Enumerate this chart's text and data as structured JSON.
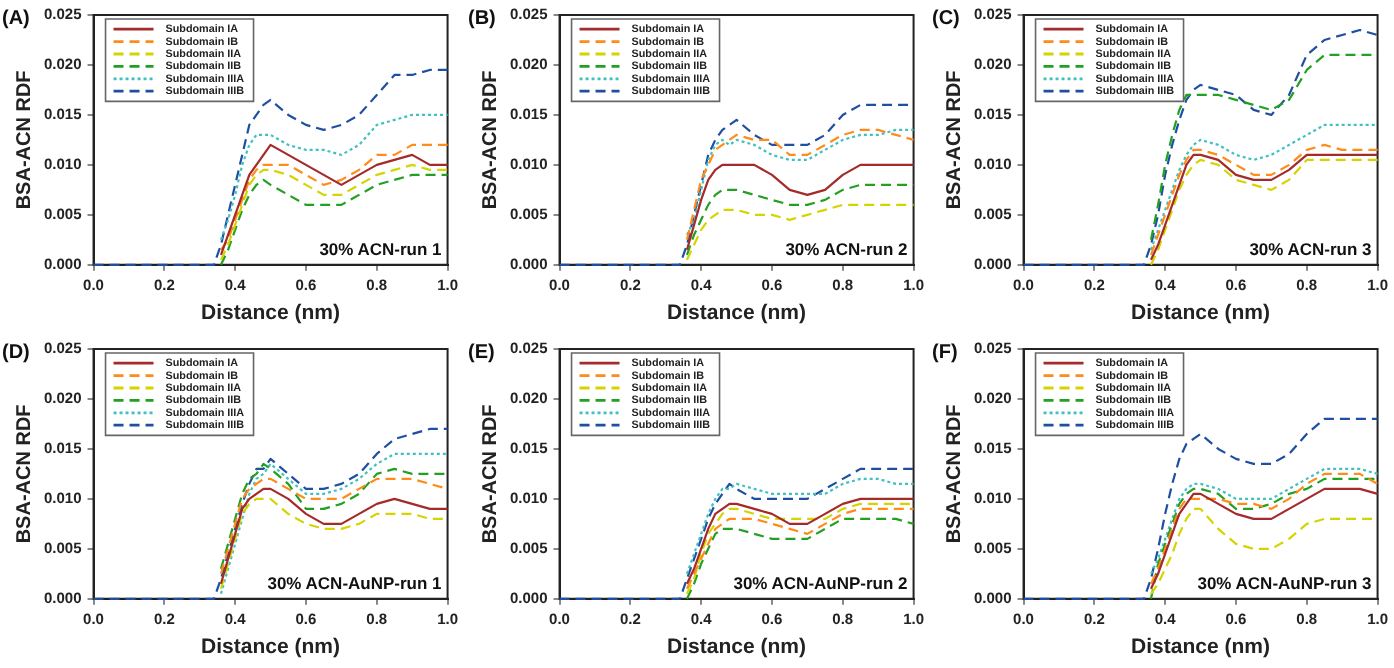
{
  "chart_data": [
    {
      "type": "line",
      "title": "(A)",
      "xlabel": "Distance (nm)",
      "ylabel": "BSA-ACN RDF",
      "annotations": [
        "30% ACN-run 1"
      ],
      "legend": "top left",
      "marker": "none",
      "grid": false,
      "x": [
        0,
        0.34,
        0.36,
        0.38,
        0.4,
        0.42,
        0.44,
        0.46,
        0.48,
        0.5,
        0.55,
        0.6,
        0.65,
        0.7,
        0.75,
        0.8,
        0.85,
        0.9,
        0.95,
        1.0
      ],
      "xlim": [
        0,
        1
      ],
      "xticks": [
        {
          "value": 0,
          "label": "0.0"
        },
        {
          "value": 0.2,
          "label": "0.2"
        },
        {
          "value": 0.4,
          "label": "0.4"
        },
        {
          "value": 0.6,
          "label": "0.6"
        },
        {
          "value": 0.8,
          "label": "0.8"
        },
        {
          "value": 1,
          "label": "1.0"
        }
      ],
      "ylim": [
        0,
        0.025
      ],
      "yticks": [
        {
          "value": 0,
          "label": "0.000"
        },
        {
          "value": 0.005,
          "label": "0.005"
        },
        {
          "value": 0.01,
          "label": "0.010"
        },
        {
          "value": 0.015,
          "label": "0.015"
        },
        {
          "value": 0.02,
          "label": "0.020"
        },
        {
          "value": 0.025,
          "label": "0.025"
        }
      ],
      "series": [
        {
          "name": "Subdomain IA",
          "color": "#a52a2a",
          "line_style": "solid",
          "values": [
            null,
            null,
            0.001,
            0.003,
            0.005,
            0.007,
            0.009,
            0.01,
            0.011,
            0.012,
            0.011,
            0.01,
            0.009,
            0.008,
            0.009,
            0.01,
            0.0105,
            0.011,
            0.01,
            0.01
          ]
        },
        {
          "name": "Subdomain IB",
          "color": "#ff8c1a",
          "line_style": "dashed",
          "values": [
            null,
            null,
            0.0015,
            0.0025,
            0.0045,
            0.0065,
            0.0085,
            0.0095,
            0.01,
            0.01,
            0.01,
            0.009,
            0.008,
            0.0085,
            0.0095,
            0.011,
            0.011,
            0.012,
            0.012,
            0.012
          ]
        },
        {
          "name": "Subdomain IIA",
          "color": "#d4d400",
          "line_style": "dashed",
          "values": [
            null,
            null,
            0.0005,
            0.002,
            0.004,
            0.006,
            0.008,
            0.009,
            0.0095,
            0.0095,
            0.009,
            0.008,
            0.007,
            0.007,
            0.008,
            0.009,
            0.0095,
            0.01,
            0.0095,
            0.0095
          ]
        },
        {
          "name": "Subdomain IIB",
          "color": "#22a022",
          "line_style": "dashed",
          "values": [
            null,
            null,
            0,
            0.0015,
            0.0035,
            0.0055,
            0.007,
            0.008,
            0.0085,
            0.008,
            0.007,
            0.006,
            0.006,
            0.006,
            0.007,
            0.008,
            0.0085,
            0.009,
            0.009,
            0.009
          ]
        },
        {
          "name": "Subdomain IIIA",
          "color": "#40c0c0",
          "line_style": "dotted",
          "values": [
            null,
            null,
            0.0025,
            0.0045,
            0.007,
            0.01,
            0.012,
            0.013,
            0.013,
            0.013,
            0.012,
            0.0115,
            0.0115,
            0.011,
            0.012,
            0.014,
            0.0145,
            0.015,
            0.015,
            0.015
          ]
        },
        {
          "name": "Subdomain IIIB",
          "color": "#1f4fa0",
          "line_style": "dashed",
          "values": [
            0,
            0,
            0.002,
            0.005,
            0.008,
            0.011,
            0.014,
            0.015,
            0.016,
            0.0165,
            0.015,
            0.014,
            0.0135,
            0.014,
            0.015,
            0.017,
            0.019,
            0.019,
            0.0195,
            0.0195
          ]
        }
      ]
    },
    {
      "type": "line",
      "title": "(B)",
      "xlabel": "Distance (nm)",
      "ylabel": "BSA-ACN RDF",
      "annotations": [
        "30% ACN-run 2"
      ],
      "legend": "top left",
      "marker": "none",
      "grid": false,
      "x": [
        0,
        0.34,
        0.36,
        0.38,
        0.4,
        0.42,
        0.44,
        0.46,
        0.48,
        0.5,
        0.55,
        0.6,
        0.65,
        0.7,
        0.75,
        0.8,
        0.85,
        0.9,
        0.95,
        1.0
      ],
      "xlim": [
        0,
        1
      ],
      "xticks": [
        {
          "value": 0,
          "label": "0.0"
        },
        {
          "value": 0.2,
          "label": "0.2"
        },
        {
          "value": 0.4,
          "label": "0.4"
        },
        {
          "value": 0.6,
          "label": "0.6"
        },
        {
          "value": 0.8,
          "label": "0.8"
        },
        {
          "value": 1,
          "label": "1.0"
        }
      ],
      "ylim": [
        0,
        0.025
      ],
      "yticks": [
        {
          "value": 0,
          "label": "0.000"
        },
        {
          "value": 0.005,
          "label": "0.005"
        },
        {
          "value": 0.01,
          "label": "0.010"
        },
        {
          "value": 0.015,
          "label": "0.015"
        },
        {
          "value": 0.02,
          "label": "0.020"
        },
        {
          "value": 0.025,
          "label": "0.025"
        }
      ],
      "series": [
        {
          "name": "Subdomain IA",
          "color": "#a52a2a",
          "line_style": "solid",
          "values": [
            null,
            null,
            0.0015,
            0.004,
            0.0065,
            0.0085,
            0.0095,
            0.01,
            0.01,
            0.01,
            0.01,
            0.009,
            0.0075,
            0.007,
            0.0075,
            0.009,
            0.01,
            0.01,
            0.01,
            0.01
          ]
        },
        {
          "name": "Subdomain IB",
          "color": "#ff8c1a",
          "line_style": "dashed",
          "values": [
            null,
            null,
            0.0025,
            0.0055,
            0.0085,
            0.01,
            0.0115,
            0.012,
            0.0125,
            0.013,
            0.0125,
            0.0125,
            0.011,
            0.011,
            0.012,
            0.013,
            0.0135,
            0.0135,
            0.013,
            0.0125
          ]
        },
        {
          "name": "Subdomain IIA",
          "color": "#d4d400",
          "line_style": "dashed",
          "values": [
            null,
            null,
            0.0005,
            0.002,
            0.0035,
            0.0045,
            0.005,
            0.0055,
            0.0055,
            0.0055,
            0.005,
            0.005,
            0.0045,
            0.005,
            0.0055,
            0.006,
            0.006,
            0.006,
            0.006,
            0.006
          ]
        },
        {
          "name": "Subdomain IIB",
          "color": "#22a022",
          "line_style": "dashed",
          "values": [
            null,
            null,
            0.001,
            0.003,
            0.0045,
            0.006,
            0.007,
            0.0075,
            0.0075,
            0.0075,
            0.007,
            0.0065,
            0.006,
            0.006,
            0.0065,
            0.0075,
            0.008,
            0.008,
            0.008,
            0.008
          ]
        },
        {
          "name": "Subdomain IIIA",
          "color": "#40c0c0",
          "line_style": "dotted",
          "values": [
            null,
            null,
            0.003,
            0.0045,
            0.0075,
            0.0105,
            0.012,
            0.0125,
            0.012,
            0.0125,
            0.012,
            0.011,
            0.0105,
            0.0105,
            0.0115,
            0.0125,
            0.013,
            0.013,
            0.0135,
            0.0135
          ]
        },
        {
          "name": "Subdomain IIIB",
          "color": "#1f4fa0",
          "line_style": "dashed",
          "values": [
            0,
            0,
            0.002,
            0.005,
            0.008,
            0.011,
            0.0125,
            0.0135,
            0.014,
            0.0145,
            0.013,
            0.012,
            0.012,
            0.012,
            0.013,
            0.015,
            0.016,
            0.016,
            0.016,
            0.016
          ]
        }
      ]
    },
    {
      "type": "line",
      "title": "(C)",
      "xlabel": "Distance (nm)",
      "ylabel": "BSA-ACN RDF",
      "annotations": [
        "30% ACN-run 3"
      ],
      "legend": "top left",
      "marker": "none",
      "grid": false,
      "x": [
        0,
        0.34,
        0.36,
        0.38,
        0.4,
        0.42,
        0.44,
        0.46,
        0.48,
        0.5,
        0.55,
        0.6,
        0.65,
        0.7,
        0.75,
        0.8,
        0.85,
        0.9,
        0.95,
        1.0
      ],
      "xlim": [
        0,
        1
      ],
      "xticks": [
        {
          "value": 0,
          "label": "0.0"
        },
        {
          "value": 0.2,
          "label": "0.2"
        },
        {
          "value": 0.4,
          "label": "0.4"
        },
        {
          "value": 0.6,
          "label": "0.6"
        },
        {
          "value": 0.8,
          "label": "0.8"
        },
        {
          "value": 1,
          "label": "1.0"
        }
      ],
      "ylim": [
        0,
        0.025
      ],
      "yticks": [
        {
          "value": 0,
          "label": "0.000"
        },
        {
          "value": 0.005,
          "label": "0.005"
        },
        {
          "value": 0.01,
          "label": "0.010"
        },
        {
          "value": 0.015,
          "label": "0.015"
        },
        {
          "value": 0.02,
          "label": "0.020"
        },
        {
          "value": 0.025,
          "label": "0.025"
        }
      ],
      "series": [
        {
          "name": "Subdomain IA",
          "color": "#a52a2a",
          "line_style": "solid",
          "values": [
            null,
            null,
            0.0005,
            0.002,
            0.004,
            0.006,
            0.008,
            0.01,
            0.011,
            0.011,
            0.0105,
            0.009,
            0.0085,
            0.0085,
            0.0095,
            0.011,
            0.011,
            0.011,
            0.011,
            0.011
          ]
        },
        {
          "name": "Subdomain IB",
          "color": "#ff8c1a",
          "line_style": "dashed",
          "values": [
            null,
            null,
            0.001,
            0.003,
            0.005,
            0.007,
            0.009,
            0.0105,
            0.0115,
            0.0115,
            0.011,
            0.01,
            0.009,
            0.009,
            0.01,
            0.0115,
            0.012,
            0.0115,
            0.0115,
            0.0115
          ]
        },
        {
          "name": "Subdomain IIA",
          "color": "#d4d400",
          "line_style": "dashed",
          "values": [
            null,
            null,
            0,
            0.0015,
            0.0035,
            0.0055,
            0.0075,
            0.009,
            0.01,
            0.0105,
            0.01,
            0.0085,
            0.008,
            0.0075,
            0.0085,
            0.0105,
            0.0105,
            0.0105,
            0.0105,
            0.0105
          ]
        },
        {
          "name": "Subdomain IIB",
          "color": "#22a022",
          "line_style": "dashed",
          "values": [
            null,
            null,
            0.0025,
            0.006,
            0.01,
            0.013,
            0.0155,
            0.017,
            0.017,
            0.017,
            0.017,
            0.0165,
            0.016,
            0.0155,
            0.0165,
            0.0195,
            0.021,
            0.021,
            0.021,
            0.021
          ]
        },
        {
          "name": "Subdomain IIIA",
          "color": "#40c0c0",
          "line_style": "dotted",
          "values": [
            null,
            null,
            0.0015,
            0.0035,
            0.0055,
            0.0075,
            0.0095,
            0.011,
            0.012,
            0.0125,
            0.012,
            0.011,
            0.0105,
            0.011,
            0.012,
            0.013,
            0.014,
            0.014,
            0.014,
            0.014
          ]
        },
        {
          "name": "Subdomain IIIB",
          "color": "#1f4fa0",
          "line_style": "dashed",
          "values": [
            0,
            0,
            0.002,
            0.005,
            0.009,
            0.012,
            0.0145,
            0.0165,
            0.0175,
            0.018,
            0.0175,
            0.017,
            0.0155,
            0.015,
            0.017,
            0.021,
            0.0225,
            0.023,
            0.0235,
            0.023
          ]
        }
      ]
    },
    {
      "type": "line",
      "title": "(D)",
      "xlabel": "Distance (nm)",
      "ylabel": "BSA-ACN RDF",
      "annotations": [
        "30% ACN-AuNP-run 1"
      ],
      "legend": "top left",
      "marker": "none",
      "grid": false,
      "x": [
        0,
        0.34,
        0.36,
        0.38,
        0.4,
        0.42,
        0.44,
        0.46,
        0.48,
        0.5,
        0.55,
        0.6,
        0.65,
        0.7,
        0.75,
        0.8,
        0.85,
        0.9,
        0.95,
        1.0
      ],
      "xlim": [
        0,
        1
      ],
      "xticks": [
        {
          "value": 0,
          "label": "0.0"
        },
        {
          "value": 0.2,
          "label": "0.2"
        },
        {
          "value": 0.4,
          "label": "0.4"
        },
        {
          "value": 0.6,
          "label": "0.6"
        },
        {
          "value": 0.8,
          "label": "0.8"
        },
        {
          "value": 1,
          "label": "1.0"
        }
      ],
      "ylim": [
        0,
        0.025
      ],
      "yticks": [
        {
          "value": 0,
          "label": "0.000"
        },
        {
          "value": 0.005,
          "label": "0.005"
        },
        {
          "value": 0.01,
          "label": "0.010"
        },
        {
          "value": 0.015,
          "label": "0.015"
        },
        {
          "value": 0.02,
          "label": "0.020"
        },
        {
          "value": 0.025,
          "label": "0.025"
        }
      ],
      "series": [
        {
          "name": "Subdomain IA",
          "color": "#a52a2a",
          "line_style": "solid",
          "values": [
            null,
            null,
            0.0015,
            0.004,
            0.0065,
            0.009,
            0.01,
            0.0105,
            0.011,
            0.011,
            0.01,
            0.0085,
            0.0075,
            0.0075,
            0.0085,
            0.0095,
            0.01,
            0.0095,
            0.009,
            0.009
          ]
        },
        {
          "name": "Subdomain IB",
          "color": "#ff8c1a",
          "line_style": "dashed",
          "values": [
            null,
            null,
            0.0025,
            0.005,
            0.0075,
            0.01,
            0.011,
            0.0115,
            0.012,
            0.012,
            0.011,
            0.01,
            0.01,
            0.01,
            0.011,
            0.012,
            0.012,
            0.012,
            0.0115,
            0.011
          ]
        },
        {
          "name": "Subdomain IIA",
          "color": "#d4d400",
          "line_style": "dashed",
          "values": [
            null,
            null,
            0.001,
            0.0035,
            0.006,
            0.0085,
            0.0095,
            0.01,
            0.01,
            0.01,
            0.0085,
            0.0075,
            0.007,
            0.007,
            0.0075,
            0.0085,
            0.0085,
            0.0085,
            0.008,
            0.008
          ]
        },
        {
          "name": "Subdomain IIB",
          "color": "#22a022",
          "line_style": "dashed",
          "values": [
            null,
            null,
            0.003,
            0.0055,
            0.008,
            0.0105,
            0.012,
            0.0125,
            0.0135,
            0.013,
            0.0115,
            0.009,
            0.009,
            0.0095,
            0.0105,
            0.0125,
            0.013,
            0.0125,
            0.0125,
            0.0125
          ]
        },
        {
          "name": "Subdomain IIIA",
          "color": "#40c0c0",
          "line_style": "dotted",
          "values": [
            null,
            null,
            0.0005,
            0.003,
            0.0055,
            0.008,
            0.0105,
            0.012,
            0.0125,
            0.0135,
            0.012,
            0.0105,
            0.0105,
            0.011,
            0.012,
            0.0135,
            0.0145,
            0.0145,
            0.0145,
            0.0145
          ]
        },
        {
          "name": "Subdomain IIIB",
          "color": "#1f4fa0",
          "line_style": "dashed",
          "values": [
            0,
            0,
            0.002,
            0.0045,
            0.007,
            0.0095,
            0.0115,
            0.013,
            0.013,
            0.014,
            0.0125,
            0.011,
            0.011,
            0.0115,
            0.0125,
            0.0145,
            0.016,
            0.0165,
            0.017,
            0.017
          ]
        }
      ]
    },
    {
      "type": "line",
      "title": "(E)",
      "xlabel": "Distance (nm)",
      "ylabel": "BSA-ACN RDF",
      "annotations": [
        "30% ACN-AuNP-run 2"
      ],
      "legend": "top left",
      "marker": "none",
      "grid": false,
      "x": [
        0,
        0.34,
        0.36,
        0.38,
        0.4,
        0.42,
        0.44,
        0.46,
        0.48,
        0.5,
        0.55,
        0.6,
        0.65,
        0.7,
        0.75,
        0.8,
        0.85,
        0.9,
        0.95,
        1.0
      ],
      "xlim": [
        0,
        1
      ],
      "xticks": [
        {
          "value": 0,
          "label": "0.0"
        },
        {
          "value": 0.2,
          "label": "0.2"
        },
        {
          "value": 0.4,
          "label": "0.4"
        },
        {
          "value": 0.6,
          "label": "0.6"
        },
        {
          "value": 0.8,
          "label": "0.8"
        },
        {
          "value": 1,
          "label": "1.0"
        }
      ],
      "ylim": [
        0,
        0.025
      ],
      "yticks": [
        {
          "value": 0,
          "label": "0.000"
        },
        {
          "value": 0.005,
          "label": "0.005"
        },
        {
          "value": 0.01,
          "label": "0.010"
        },
        {
          "value": 0.015,
          "label": "0.015"
        },
        {
          "value": 0.02,
          "label": "0.020"
        },
        {
          "value": 0.025,
          "label": "0.025"
        }
      ],
      "series": [
        {
          "name": "Subdomain IA",
          "color": "#a52a2a",
          "line_style": "solid",
          "values": [
            null,
            null,
            0.0015,
            0.003,
            0.005,
            0.007,
            0.0085,
            0.009,
            0.0095,
            0.0095,
            0.009,
            0.0085,
            0.0075,
            0.0075,
            0.0085,
            0.0095,
            0.01,
            0.01,
            0.01,
            0.01
          ]
        },
        {
          "name": "Subdomain IB",
          "color": "#ff8c1a",
          "line_style": "dashed",
          "values": [
            null,
            null,
            0.001,
            0.0025,
            0.004,
            0.0055,
            0.007,
            0.0075,
            0.008,
            0.008,
            0.008,
            0.0075,
            0.007,
            0.0065,
            0.0075,
            0.0085,
            0.009,
            0.009,
            0.009,
            0.009
          ]
        },
        {
          "name": "Subdomain IIA",
          "color": "#d4d400",
          "line_style": "dashed",
          "values": [
            null,
            null,
            0.0005,
            0.002,
            0.0045,
            0.0065,
            0.0075,
            0.0085,
            0.009,
            0.009,
            0.0085,
            0.008,
            0.008,
            0.008,
            0.008,
            0.009,
            0.0095,
            0.0095,
            0.0095,
            0.0095
          ]
        },
        {
          "name": "Subdomain IIB",
          "color": "#22a022",
          "line_style": "dashed",
          "values": [
            null,
            null,
            0,
            0.0015,
            0.0035,
            0.005,
            0.0065,
            0.007,
            0.007,
            0.007,
            0.0065,
            0.006,
            0.006,
            0.006,
            0.007,
            0.008,
            0.008,
            0.008,
            0.008,
            0.0075
          ]
        },
        {
          "name": "Subdomain IIIA",
          "color": "#40c0c0",
          "line_style": "dotted",
          "values": [
            null,
            null,
            0.0025,
            0.0045,
            0.0065,
            0.0085,
            0.01,
            0.011,
            0.011,
            0.0115,
            0.011,
            0.0105,
            0.0105,
            0.0105,
            0.0105,
            0.0115,
            0.012,
            0.012,
            0.0115,
            0.0115
          ]
        },
        {
          "name": "Subdomain IIIB",
          "color": "#1f4fa0",
          "line_style": "dashed",
          "values": [
            0,
            0,
            0.002,
            0.004,
            0.006,
            0.008,
            0.0095,
            0.0105,
            0.0115,
            0.011,
            0.01,
            0.01,
            0.01,
            0.01,
            0.011,
            0.012,
            0.013,
            0.013,
            0.013,
            0.013
          ]
        }
      ]
    },
    {
      "type": "line",
      "title": "(F)",
      "xlabel": "Distance (nm)",
      "ylabel": "BSA-ACN RDF",
      "annotations": [
        "30% ACN-AuNP-run 3"
      ],
      "legend": "top left",
      "marker": "none",
      "grid": false,
      "x": [
        0,
        0.34,
        0.36,
        0.38,
        0.4,
        0.42,
        0.44,
        0.46,
        0.48,
        0.5,
        0.55,
        0.6,
        0.65,
        0.7,
        0.75,
        0.8,
        0.85,
        0.9,
        0.95,
        1.0
      ],
      "xlim": [
        0,
        1
      ],
      "xticks": [
        {
          "value": 0,
          "label": "0.0"
        },
        {
          "value": 0.2,
          "label": "0.2"
        },
        {
          "value": 0.4,
          "label": "0.4"
        },
        {
          "value": 0.6,
          "label": "0.6"
        },
        {
          "value": 0.8,
          "label": "0.8"
        },
        {
          "value": 1,
          "label": "1.0"
        }
      ],
      "ylim": [
        0,
        0.025
      ],
      "yticks": [
        {
          "value": 0,
          "label": "0.000"
        },
        {
          "value": 0.005,
          "label": "0.005"
        },
        {
          "value": 0.01,
          "label": "0.010"
        },
        {
          "value": 0.015,
          "label": "0.015"
        },
        {
          "value": 0.02,
          "label": "0.020"
        },
        {
          "value": 0.025,
          "label": "0.025"
        }
      ],
      "series": [
        {
          "name": "Subdomain IA",
          "color": "#a52a2a",
          "line_style": "solid",
          "values": [
            null,
            null,
            0.001,
            0.0025,
            0.0045,
            0.0065,
            0.0085,
            0.0095,
            0.0105,
            0.0105,
            0.0095,
            0.0085,
            0.008,
            0.008,
            0.009,
            0.01,
            0.011,
            0.011,
            0.011,
            0.0105
          ]
        },
        {
          "name": "Subdomain IB",
          "color": "#ff8c1a",
          "line_style": "dashed",
          "values": [
            null,
            null,
            0.0015,
            0.003,
            0.005,
            0.007,
            0.009,
            0.01,
            0.01,
            0.01,
            0.01,
            0.0095,
            0.0095,
            0.009,
            0.01,
            0.0115,
            0.0125,
            0.0125,
            0.0125,
            0.0115
          ]
        },
        {
          "name": "Subdomain IIA",
          "color": "#d4d400",
          "line_style": "dashed",
          "values": [
            null,
            null,
            0.0005,
            0.0015,
            0.003,
            0.0045,
            0.0065,
            0.008,
            0.009,
            0.009,
            0.007,
            0.0055,
            0.005,
            0.005,
            0.006,
            0.0075,
            0.008,
            0.008,
            0.008,
            0.008
          ]
        },
        {
          "name": "Subdomain IIB",
          "color": "#22a022",
          "line_style": "dashed",
          "values": [
            null,
            null,
            0,
            0.0035,
            0.0055,
            0.0075,
            0.0095,
            0.0105,
            0.011,
            0.011,
            0.0105,
            0.009,
            0.009,
            0.0095,
            0.0105,
            0.011,
            0.012,
            0.012,
            0.012,
            0.012
          ]
        },
        {
          "name": "Subdomain IIIA",
          "color": "#40c0c0",
          "line_style": "dotted",
          "values": [
            null,
            null,
            0.0025,
            0.004,
            0.006,
            0.008,
            0.01,
            0.011,
            0.0115,
            0.0115,
            0.011,
            0.01,
            0.01,
            0.01,
            0.011,
            0.012,
            0.013,
            0.013,
            0.013,
            0.0125
          ]
        },
        {
          "name": "Subdomain IIIB",
          "color": "#1f4fa0",
          "line_style": "dashed",
          "values": [
            0,
            0,
            0.002,
            0.005,
            0.0085,
            0.0115,
            0.014,
            0.0155,
            0.016,
            0.0165,
            0.015,
            0.014,
            0.0135,
            0.0135,
            0.0145,
            0.0165,
            0.018,
            0.018,
            0.018,
            0.018
          ]
        }
      ]
    }
  ]
}
